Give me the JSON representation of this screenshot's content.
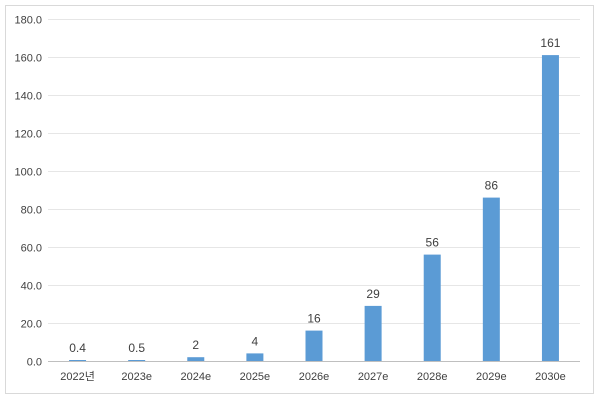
{
  "chart_data": {
    "type": "bar",
    "title": "",
    "xlabel": "",
    "ylabel": "",
    "categories": [
      "2022년",
      "2023e",
      "2024e",
      "2025e",
      "2026e",
      "2027e",
      "2028e",
      "2029e",
      "2030e"
    ],
    "series": [
      {
        "values": [
          0.4,
          0.5,
          2,
          4,
          16,
          29,
          56,
          86,
          161
        ],
        "color": "#5b9bd5"
      }
    ],
    "data_labels": [
      "0.4",
      "0.5",
      "2",
      "4",
      "16",
      "29",
      "56",
      "86",
      "161"
    ],
    "yticks": [
      "0.0",
      "20.0",
      "40.0",
      "60.0",
      "80.0",
      "100.0",
      "120.0",
      "140.0",
      "160.0",
      "180.0"
    ],
    "ylim": [
      0,
      180
    ],
    "grid": true,
    "legend": "none"
  }
}
